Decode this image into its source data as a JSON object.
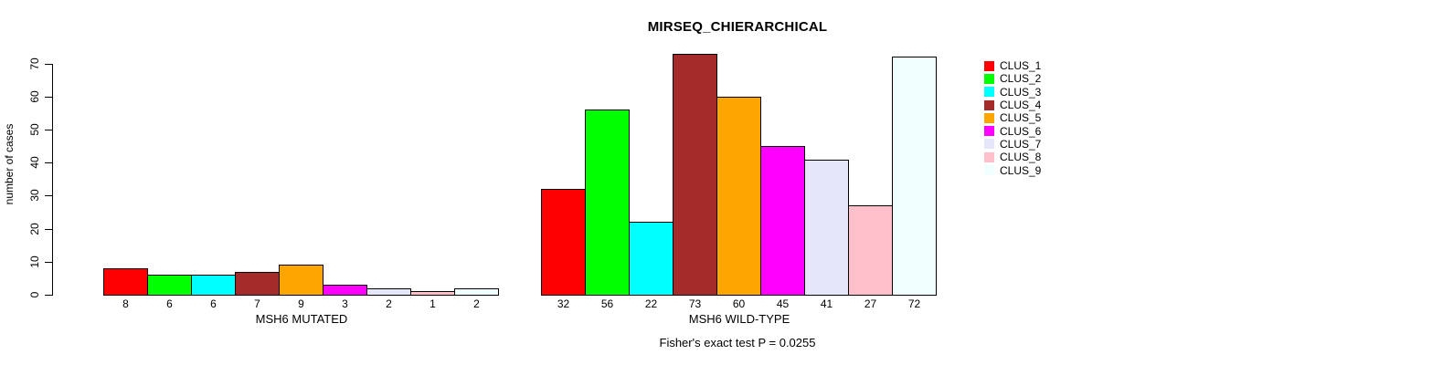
{
  "chart_data": {
    "type": "bar",
    "title": "MIRSEQ_CHIERARCHICAL",
    "ylabel": "number of cases",
    "ylim": [
      0,
      70
    ],
    "yticks": [
      0,
      10,
      20,
      30,
      40,
      50,
      60,
      70
    ],
    "grid": false,
    "legend_position": "right-outside",
    "clusters": [
      {
        "name": "CLUS_1",
        "color": "#FF0000"
      },
      {
        "name": "CLUS_2",
        "color": "#00FF00"
      },
      {
        "name": "CLUS_3",
        "color": "#00FFFF"
      },
      {
        "name": "CLUS_4",
        "color": "#A52A2A"
      },
      {
        "name": "CLUS_5",
        "color": "#FFA500"
      },
      {
        "name": "CLUS_6",
        "color": "#FF00FF"
      },
      {
        "name": "CLUS_7",
        "color": "#E6E6FA"
      },
      {
        "name": "CLUS_8",
        "color": "#FFC0CB"
      },
      {
        "name": "CLUS_9",
        "color": "#F0FFFF"
      }
    ],
    "groups": [
      {
        "label": "MSH6 MUTATED",
        "values": [
          8,
          6,
          6,
          7,
          9,
          3,
          2,
          1,
          2
        ]
      },
      {
        "label": "MSH6 WILD-TYPE",
        "values": [
          32,
          56,
          22,
          73,
          60,
          45,
          41,
          27,
          72
        ]
      }
    ],
    "annotation": "Fisher's exact test P = 0.0255"
  }
}
